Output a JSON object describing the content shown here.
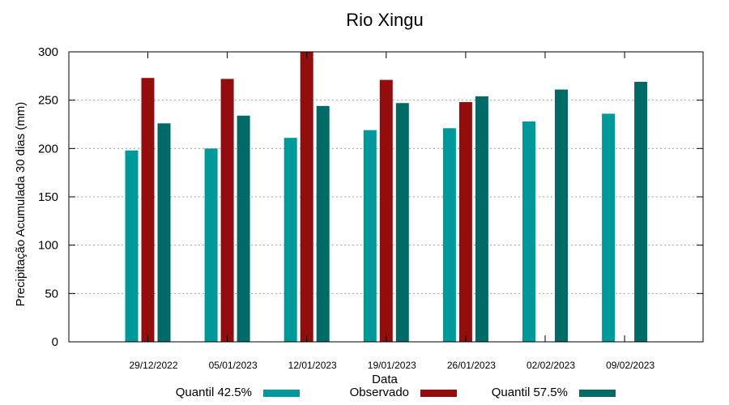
{
  "chart_data": {
    "type": "bar",
    "title": "Rio Xingu",
    "xlabel": "Data",
    "ylabel": "Precipitação Acumulada 30 dias (mm)",
    "ylim": [
      0,
      300
    ],
    "yticks": [
      0,
      50,
      100,
      150,
      200,
      250,
      300
    ],
    "grid": true,
    "legend_position": "bottom",
    "categories": [
      "29/12/2022",
      "05/01/2023",
      "12/01/2023",
      "19/01/2023",
      "26/01/2023",
      "02/02/2023",
      "09/02/2023"
    ],
    "series": [
      {
        "name": "Quantil 42.5%",
        "color": "#009999",
        "values": [
          198,
          200,
          211,
          219,
          221,
          228,
          236
        ]
      },
      {
        "name": "Observado",
        "color": "#930d0d",
        "values": [
          273,
          272,
          300,
          271,
          248,
          null,
          null
        ]
      },
      {
        "name": "Quantil 57.5%",
        "color": "#006a66",
        "values": [
          226,
          234,
          244,
          247,
          254,
          261,
          269
        ]
      }
    ]
  }
}
